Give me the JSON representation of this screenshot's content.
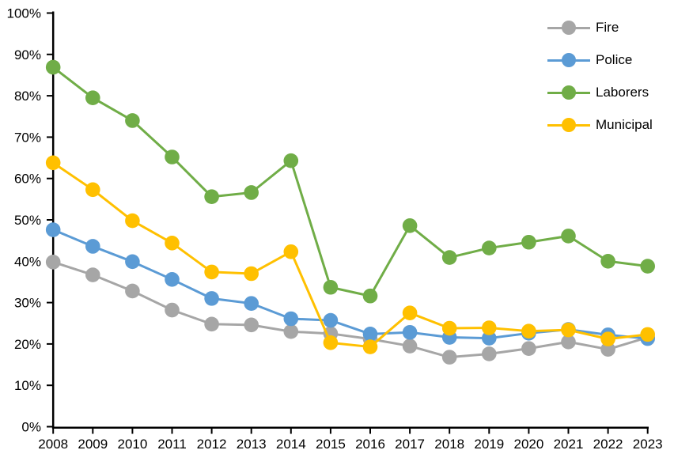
{
  "chart_data": {
    "type": "line",
    "title": "",
    "x": [
      "2008",
      "2009",
      "2010",
      "2011",
      "2012",
      "2013",
      "2014",
      "2015",
      "2016",
      "2017",
      "2018",
      "2019",
      "2020",
      "2021",
      "2022",
      "2023"
    ],
    "series": [
      {
        "name": "Fire",
        "color": "#A6A6A6",
        "values": [
          39.8,
          36.7,
          32.8,
          28.2,
          24.8,
          24.6,
          23.0,
          22.5,
          21.2,
          19.5,
          16.8,
          17.6,
          18.9,
          20.5,
          18.7,
          21.6
        ]
      },
      {
        "name": "Police",
        "color": "#5B9BD5",
        "values": [
          47.6,
          43.6,
          39.9,
          35.6,
          31.0,
          29.8,
          26.1,
          25.7,
          22.4,
          22.8,
          21.6,
          21.4,
          22.6,
          23.5,
          22.2,
          21.3
        ]
      },
      {
        "name": "Laborers",
        "color": "#70AD47",
        "values": [
          86.9,
          79.5,
          74.0,
          65.2,
          55.6,
          56.6,
          64.3,
          33.7,
          31.6,
          48.6,
          40.9,
          43.2,
          44.6,
          46.1,
          40.0,
          38.8
        ]
      },
      {
        "name": "Municipal",
        "color": "#FFC000",
        "values": [
          63.8,
          57.3,
          49.8,
          44.4,
          37.4,
          37.0,
          42.3,
          20.3,
          19.3,
          27.5,
          23.8,
          23.9,
          23.1,
          23.4,
          21.2,
          22.3
        ]
      }
    ],
    "y_axis": {
      "min": 0,
      "max": 100,
      "step": 10,
      "tick_labels": [
        "0%",
        "10%",
        "20%",
        "30%",
        "40%",
        "50%",
        "60%",
        "70%",
        "80%",
        "90%",
        "100%"
      ]
    },
    "x_label": "",
    "y_label": "",
    "grid": false,
    "legend_position": "top-right",
    "axis_color": "#000000",
    "background_color": "#FFFFFF"
  }
}
